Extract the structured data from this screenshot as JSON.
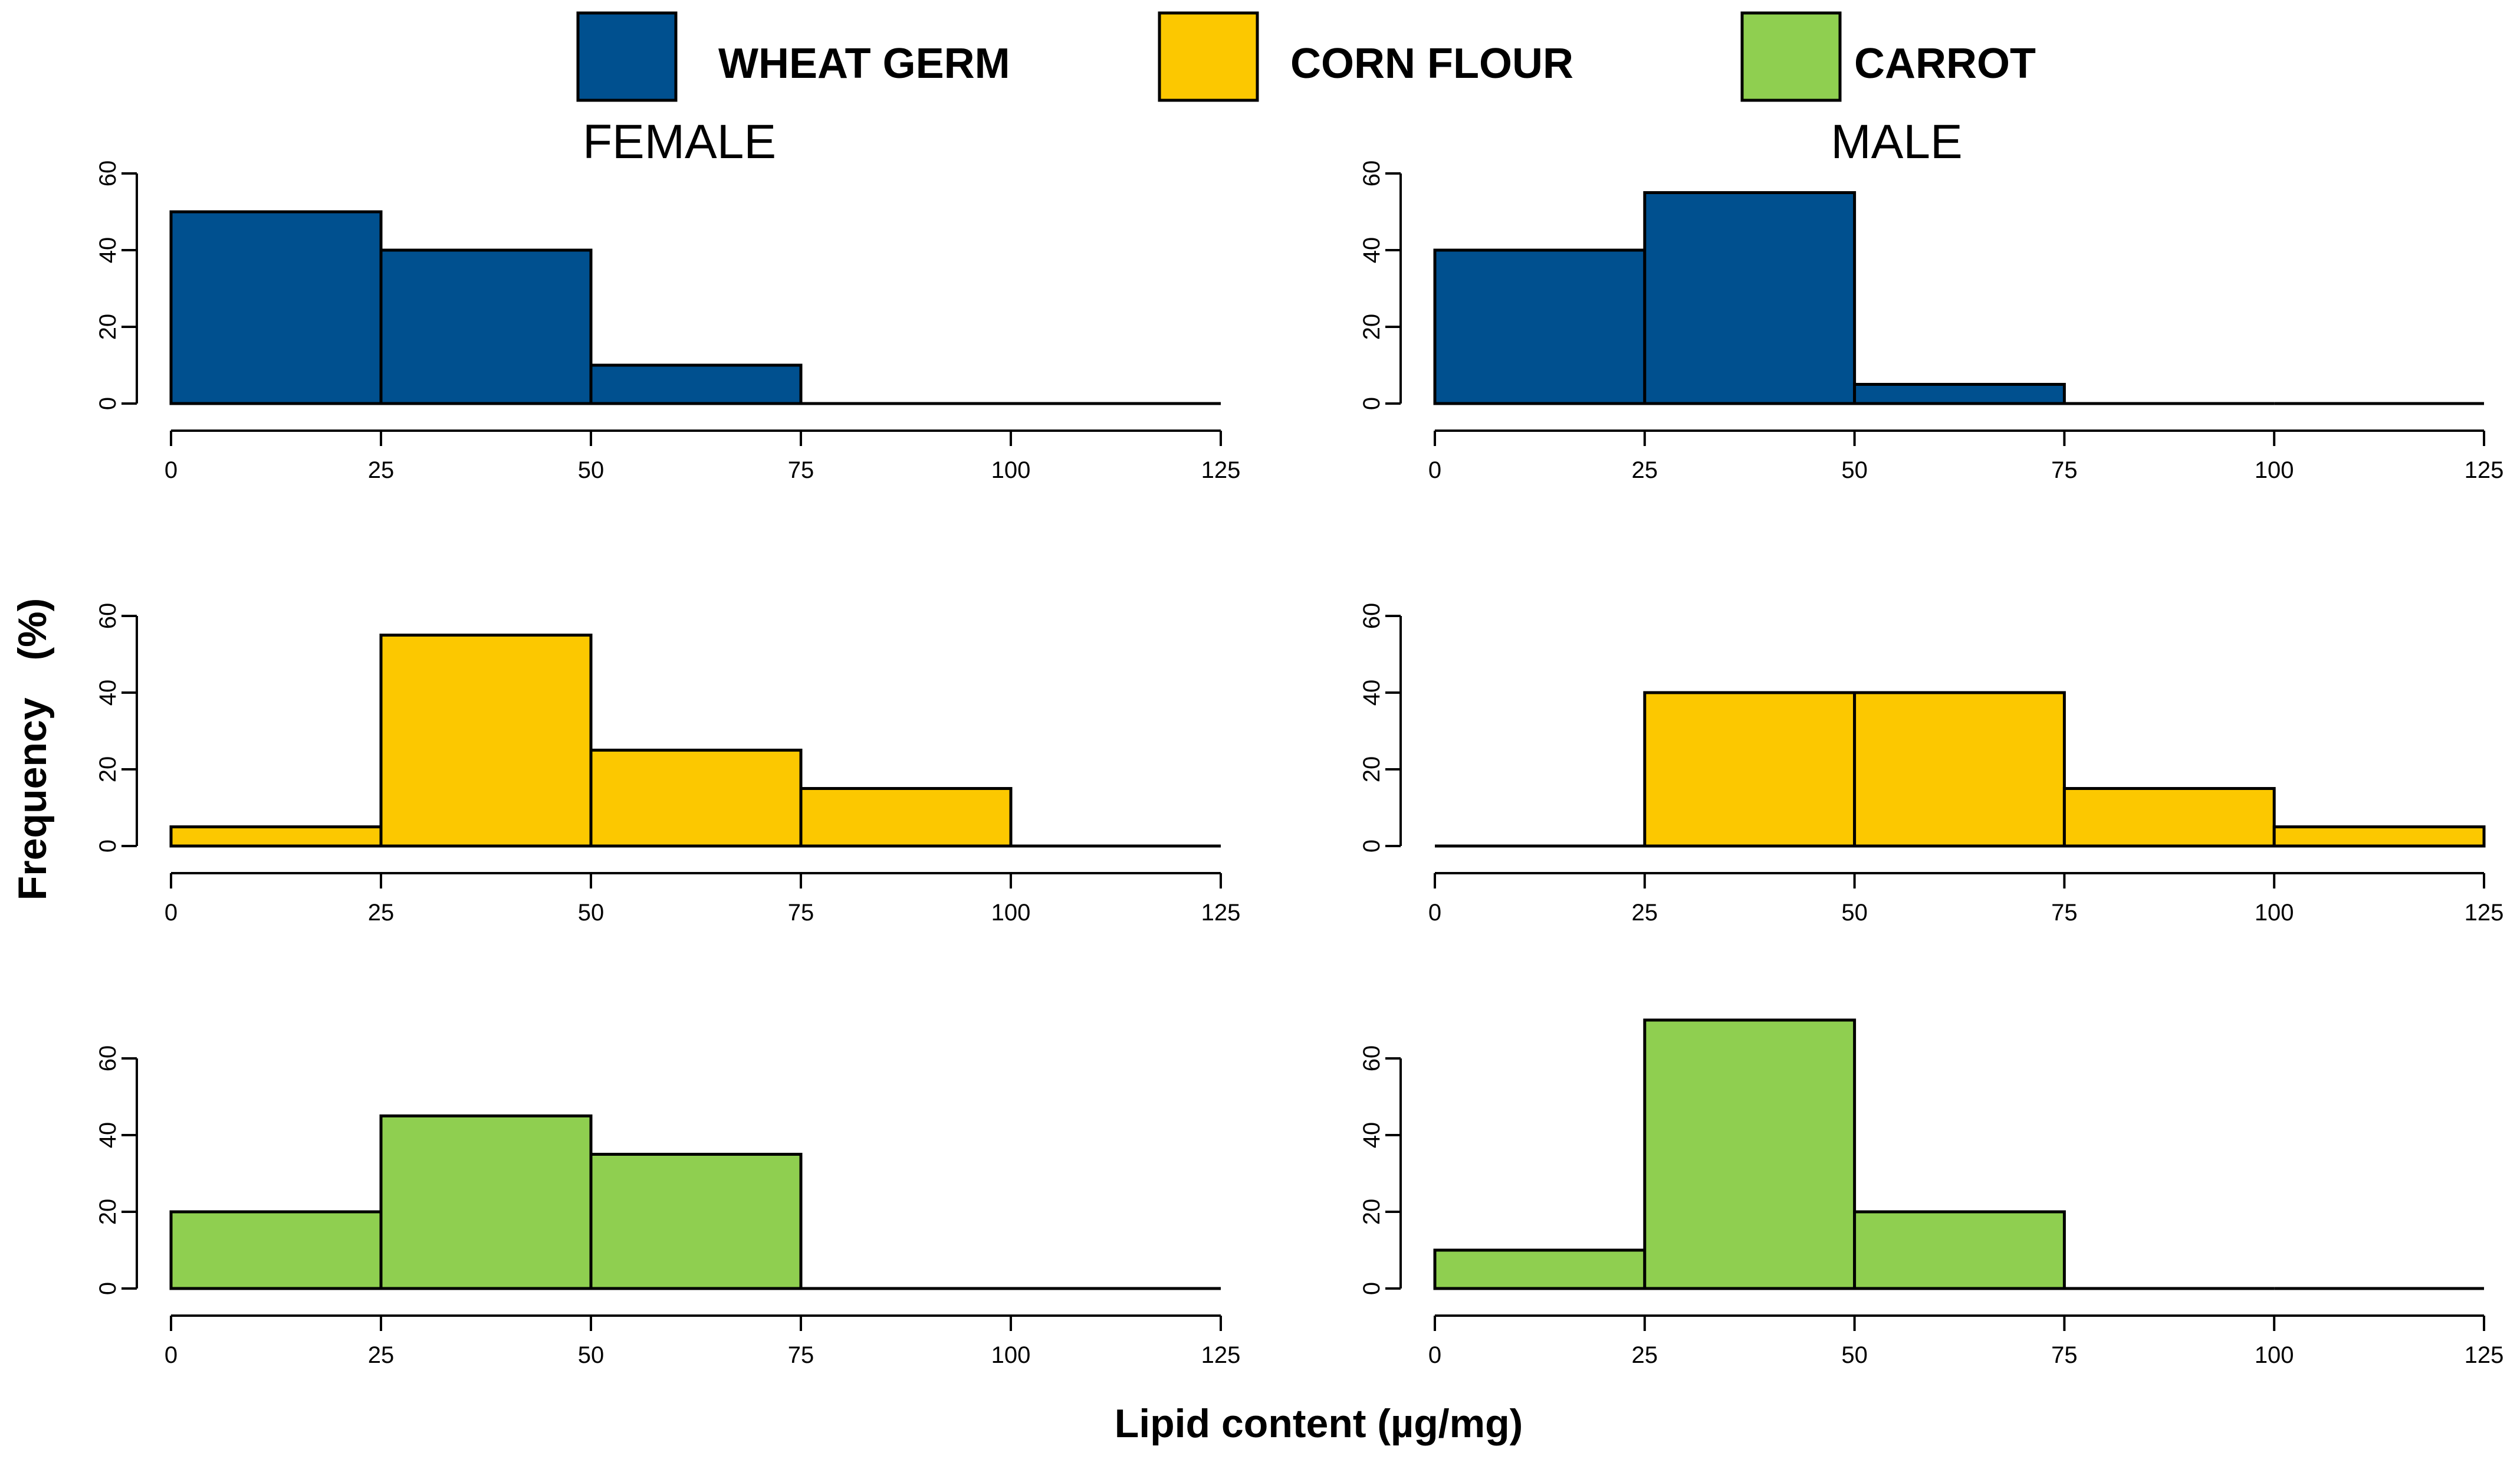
{
  "legend": [
    {
      "label": "WHEAT GERM",
      "color": "#00508f"
    },
    {
      "label": "CORN FLOUR",
      "color": "#fcc800"
    },
    {
      "label": "CARROT",
      "color": "#8fcf50"
    }
  ],
  "column_titles": [
    "FEMALE",
    "MALE"
  ],
  "xlabel": "Lipid content (µg/mg)",
  "ylabel_word": "Frequency",
  "ylabel_unit": "(%)",
  "chart_data": [
    {
      "type": "bar",
      "title": "FEMALE",
      "series": [
        {
          "name": "WHEAT GERM",
          "values": [
            50,
            40,
            10,
            0,
            0
          ]
        }
      ],
      "bins": [
        [
          0,
          25
        ],
        [
          25,
          50
        ],
        [
          50,
          75
        ],
        [
          75,
          100
        ],
        [
          100,
          125
        ]
      ],
      "x_ticks": [
        0,
        25,
        50,
        75,
        100,
        125
      ],
      "y_ticks": [
        0,
        20,
        40,
        60
      ],
      "xlim": [
        0,
        125
      ],
      "ylim": [
        0,
        60
      ],
      "color": "#00508f"
    },
    {
      "type": "bar",
      "title": "MALE",
      "series": [
        {
          "name": "WHEAT GERM",
          "values": [
            40,
            55,
            5,
            0,
            0
          ]
        }
      ],
      "bins": [
        [
          0,
          25
        ],
        [
          25,
          50
        ],
        [
          50,
          75
        ],
        [
          75,
          100
        ],
        [
          100,
          125
        ]
      ],
      "x_ticks": [
        0,
        25,
        50,
        75,
        100,
        125
      ],
      "y_ticks": [
        0,
        20,
        40,
        60
      ],
      "xlim": [
        0,
        125
      ],
      "ylim": [
        0,
        60
      ],
      "color": "#00508f"
    },
    {
      "type": "bar",
      "title": "FEMALE",
      "series": [
        {
          "name": "CORN FLOUR",
          "values": [
            5,
            55,
            25,
            15,
            0
          ]
        }
      ],
      "bins": [
        [
          0,
          25
        ],
        [
          25,
          50
        ],
        [
          50,
          75
        ],
        [
          75,
          100
        ],
        [
          100,
          125
        ]
      ],
      "x_ticks": [
        0,
        25,
        50,
        75,
        100,
        125
      ],
      "y_ticks": [
        0,
        20,
        40,
        60
      ],
      "xlim": [
        0,
        125
      ],
      "ylim": [
        0,
        60
      ],
      "color": "#fcc800"
    },
    {
      "type": "bar",
      "title": "MALE",
      "series": [
        {
          "name": "CORN FLOUR",
          "values": [
            0,
            40,
            40,
            15,
            5
          ]
        }
      ],
      "bins": [
        [
          0,
          25
        ],
        [
          25,
          50
        ],
        [
          50,
          75
        ],
        [
          75,
          100
        ],
        [
          100,
          125
        ]
      ],
      "x_ticks": [
        0,
        25,
        50,
        75,
        100,
        125
      ],
      "y_ticks": [
        0,
        20,
        40,
        60
      ],
      "xlim": [
        0,
        125
      ],
      "ylim": [
        0,
        60
      ],
      "color": "#fcc800"
    },
    {
      "type": "bar",
      "title": "FEMALE",
      "series": [
        {
          "name": "CARROT",
          "values": [
            20,
            45,
            35,
            0,
            0
          ]
        }
      ],
      "bins": [
        [
          0,
          25
        ],
        [
          25,
          50
        ],
        [
          50,
          75
        ],
        [
          75,
          100
        ],
        [
          100,
          125
        ]
      ],
      "x_ticks": [
        0,
        25,
        50,
        75,
        100,
        125
      ],
      "y_ticks": [
        0,
        20,
        40,
        60
      ],
      "xlim": [
        0,
        125
      ],
      "ylim": [
        0,
        60
      ],
      "color": "#8fcf50"
    },
    {
      "type": "bar",
      "title": "MALE",
      "series": [
        {
          "name": "CARROT",
          "values": [
            10,
            70,
            20,
            0,
            0
          ]
        }
      ],
      "bins": [
        [
          0,
          25
        ],
        [
          25,
          50
        ],
        [
          50,
          75
        ],
        [
          75,
          100
        ],
        [
          100,
          125
        ]
      ],
      "x_ticks": [
        0,
        25,
        50,
        75,
        100,
        125
      ],
      "y_ticks": [
        0,
        20,
        40,
        60
      ],
      "xlim": [
        0,
        125
      ],
      "ylim": [
        0,
        60
      ],
      "color": "#8fcf50"
    }
  ]
}
